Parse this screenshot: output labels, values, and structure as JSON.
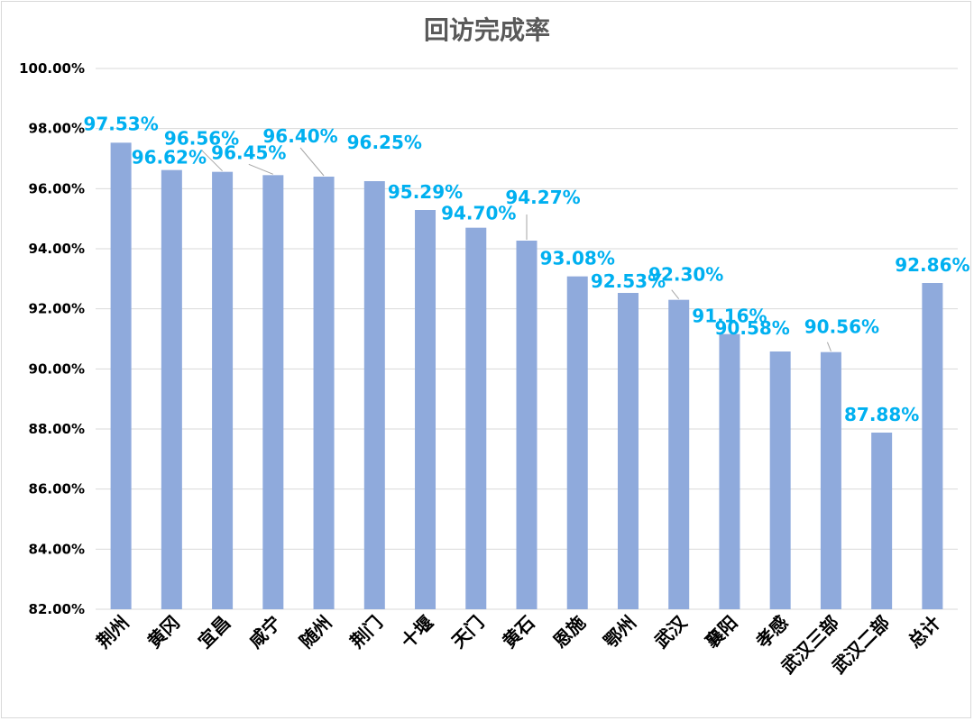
{
  "chart_data": {
    "type": "bar",
    "title": "回访完成率",
    "xlabel": "",
    "ylabel": "",
    "categories": [
      "荆州",
      "黄冈",
      "宜昌",
      "咸宁",
      "随州",
      "荆门",
      "十堰",
      "天门",
      "黄石",
      "恩施",
      "鄂州",
      "武汉",
      "襄阳",
      "孝感",
      "武汉三部",
      "武汉二部",
      "总计"
    ],
    "values": [
      97.53,
      96.62,
      96.56,
      96.45,
      96.4,
      96.25,
      95.29,
      94.7,
      94.27,
      93.08,
      92.53,
      92.3,
      91.16,
      90.58,
      90.56,
      87.88,
      92.86
    ],
    "value_labels": [
      "97.53%",
      "96.62%",
      "96.56%",
      "96.45%",
      "96.40%",
      "96.25%",
      "95.29%",
      "94.70%",
      "94.27%",
      "93.08%",
      "92.53%",
      "92.30%",
      "91.16%",
      "90.58%",
      "90.56%",
      "87.88%",
      "92.86%"
    ],
    "ylim": [
      82,
      100
    ],
    "yticks": [
      82,
      84,
      86,
      88,
      90,
      92,
      94,
      96,
      98,
      100
    ],
    "ytick_labels": [
      "82.00%",
      "84.00%",
      "86.00%",
      "88.00%",
      "90.00%",
      "92.00%",
      "94.00%",
      "96.00%",
      "98.00%",
      "100.00%"
    ],
    "grid": true,
    "legend": "none",
    "bar_color": "#8faadc",
    "label_color": "#00b0f0",
    "grid_color": "#d9d9d9"
  }
}
